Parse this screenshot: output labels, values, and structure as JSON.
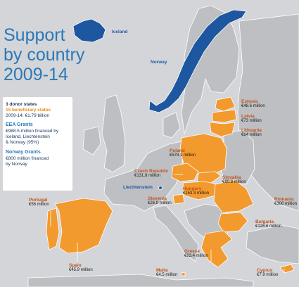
{
  "title": {
    "line1": "Support",
    "line2": "by country",
    "line3": "2009-14"
  },
  "info": {
    "donor_states": "3 donor states",
    "beneficiary_states": "15 beneficiary states",
    "period_total": "2009-14: €1.79 billion",
    "eea_heading": "EEA Grants",
    "eea_line1": "€988.5 million financed by",
    "eea_line2": "Iceland, Liechtenstein",
    "eea_line3": "& Norway (95%)",
    "norway_heading": "Norway Grants",
    "norway_line1": "€800 million financed",
    "norway_line2": "by Norway"
  },
  "donors": {
    "iceland": "Iceland",
    "norway": "Norway",
    "liechtenstein": "Liechtenstein"
  },
  "beneficiaries": {
    "estonia": {
      "name": "Estonia",
      "amount": "€48.6 million"
    },
    "latvia": {
      "name": "Latvia",
      "amount": "€73 million"
    },
    "lithuania": {
      "name": "Lithuania",
      "amount": "€84 million"
    },
    "poland": {
      "name": "Poland",
      "amount": "€578.1 million"
    },
    "czech": {
      "name": "Czech Republic",
      "amount": "€131.8 million"
    },
    "slovakia": {
      "name": "Slovakia",
      "amount": "€80.8 million"
    },
    "hungary": {
      "name": "Hungary",
      "amount": "€153.3 million"
    },
    "slovenia": {
      "name": "Slovenia",
      "amount": "€26.9 million"
    },
    "romania": {
      "name": "Romania",
      "amount": "€306 million"
    },
    "bulgaria": {
      "name": "Bulgaria",
      "amount": "€126.6 million"
    },
    "portugal": {
      "name": "Portugal",
      "amount": "€58 million"
    },
    "spain": {
      "name": "Spain",
      "amount": "€45.9 million"
    },
    "greece": {
      "name": "Greece",
      "amount": "€63.4 million"
    },
    "malta": {
      "name": "Malta",
      "amount": "€4.5 million"
    },
    "cyprus": {
      "name": "Cyprus",
      "amount": "€7.9 million"
    }
  },
  "colors": {
    "background": "#d3d5d8",
    "land": "#bdbfc2",
    "border": "#ffffff",
    "donor": "#1d57a0",
    "beneficiary": "#f29a2e",
    "title": "#2b78b8"
  }
}
